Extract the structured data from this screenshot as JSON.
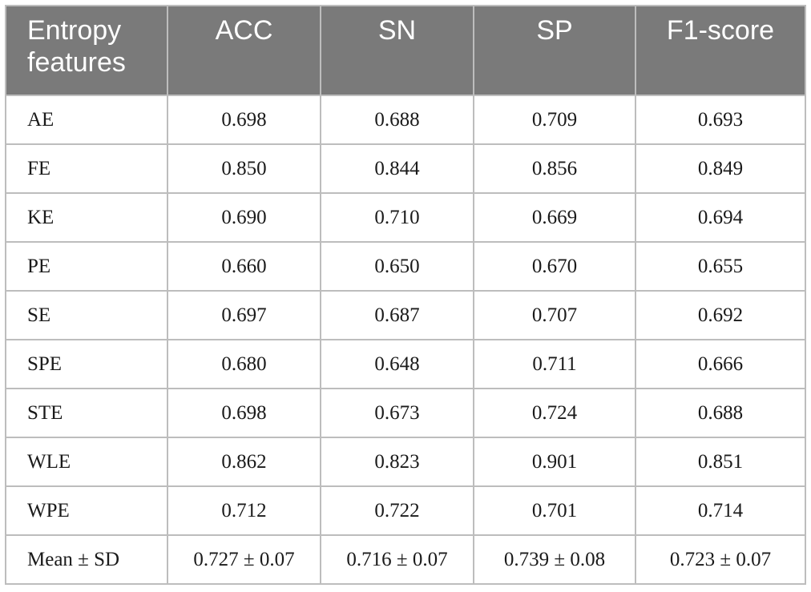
{
  "table": {
    "headers": [
      "Entropy features",
      "ACC",
      "SN",
      "SP",
      "F1-score"
    ],
    "rows": [
      [
        "AE",
        "0.698",
        "0.688",
        "0.709",
        "0.693"
      ],
      [
        "FE",
        "0.850",
        "0.844",
        "0.856",
        "0.849"
      ],
      [
        "KE",
        "0.690",
        "0.710",
        "0.669",
        "0.694"
      ],
      [
        "PE",
        "0.660",
        "0.650",
        "0.670",
        "0.655"
      ],
      [
        "SE",
        "0.697",
        "0.687",
        "0.707",
        "0.692"
      ],
      [
        "SPE",
        "0.680",
        "0.648",
        "0.711",
        "0.666"
      ],
      [
        "STE",
        "0.698",
        "0.673",
        "0.724",
        "0.688"
      ],
      [
        "WLE",
        "0.862",
        "0.823",
        "0.901",
        "0.851"
      ],
      [
        "WPE",
        "0.712",
        "0.722",
        "0.701",
        "0.714"
      ],
      [
        "Mean ± SD",
        "0.727 ± 0.07",
        "0.716 ± 0.07",
        "0.739 ± 0.08",
        "0.723 ± 0.07"
      ]
    ]
  }
}
